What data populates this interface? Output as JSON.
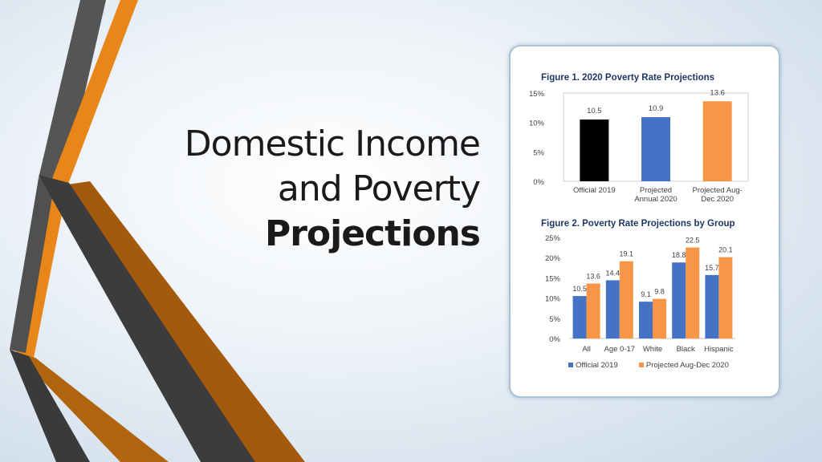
{
  "slide": {
    "title_line1": "Domestic Income",
    "title_line2": "and Poverty",
    "title_line3": "Projections"
  },
  "colors": {
    "black": "#000000",
    "blue": "#4472c4",
    "orange": "#f79646",
    "deco_gray": "#4a4a4a",
    "deco_orange": "#e8861a"
  },
  "chart_data": [
    {
      "type": "bar",
      "title": "Figure 1. 2020 Poverty Rate Projections",
      "categories": [
        "Official 2019",
        "Projected Annual 2020",
        "Projected Aug-Dec 2020"
      ],
      "category_lines": [
        [
          "Official 2019"
        ],
        [
          "Projected",
          "Annual 2020"
        ],
        [
          "Projected Aug-",
          "Dec 2020"
        ]
      ],
      "values": [
        10.5,
        10.9,
        13.6
      ],
      "value_labels": [
        "10.5",
        "10.9",
        "13.6"
      ],
      "bar_colors": [
        "#000000",
        "#4472c4",
        "#f79646"
      ],
      "ylim": [
        0,
        15
      ],
      "yticks": [
        0,
        5,
        10,
        15
      ],
      "ytick_labels": [
        "0%",
        "5%",
        "10%",
        "15%"
      ],
      "grid": false
    },
    {
      "type": "bar",
      "title": "Figure 2. Poverty Rate Projections by Group",
      "categories": [
        "All",
        "Age 0-17",
        "White",
        "Black",
        "Hispanic"
      ],
      "series": [
        {
          "name": "Official 2019",
          "values": [
            10.5,
            14.4,
            9.1,
            18.8,
            15.7
          ],
          "color": "#4472c4"
        },
        {
          "name": "Projected Aug-Dec 2020",
          "values": [
            13.6,
            19.1,
            9.8,
            22.5,
            20.1
          ],
          "color": "#f79646"
        }
      ],
      "ylim": [
        0,
        25
      ],
      "yticks": [
        0,
        5,
        10,
        15,
        20,
        25
      ],
      "ytick_labels": [
        "0%",
        "5%",
        "10%",
        "15%",
        "20%",
        "25%"
      ],
      "legend": "bottom",
      "grid": false
    }
  ]
}
